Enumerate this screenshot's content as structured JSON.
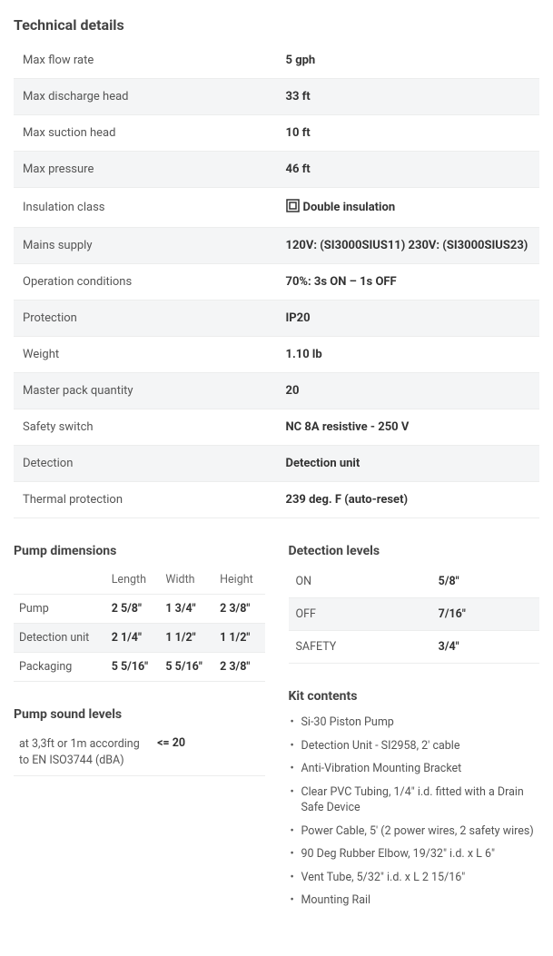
{
  "tech": {
    "title": "Technical details",
    "rows": [
      {
        "label": "Max flow rate",
        "value": "5 gph"
      },
      {
        "label": "Max discharge head",
        "value": "33 ft"
      },
      {
        "label": "Max suction head",
        "value": "10 ft"
      },
      {
        "label": "Max pressure",
        "value": "46 ft"
      },
      {
        "label": "Insulation class",
        "value": "Double insulation",
        "hasIcon": true
      },
      {
        "label": "Mains supply",
        "value": "120V: (SI3000SIUS11) 230V: (SI3000SIUS23)"
      },
      {
        "label": "Operation conditions",
        "value": "70%: 3s ON – 1s OFF"
      },
      {
        "label": "Protection",
        "value": "IP20"
      },
      {
        "label": "Weight",
        "value": "1.10 lb"
      },
      {
        "label": "Master pack quantity",
        "value": "20"
      },
      {
        "label": "Safety switch",
        "value": "NC 8A resistive - 250 V"
      },
      {
        "label": "Detection",
        "value": "Detection unit"
      },
      {
        "label": "Thermal protection",
        "value": "239 deg. F (auto-reset)"
      }
    ]
  },
  "dims": {
    "title": "Pump dimensions",
    "columns": [
      "",
      "Length",
      "Width",
      "Height"
    ],
    "rows": [
      {
        "label": "Pump",
        "length": "2 5/8\"",
        "width": "1 3/4\"",
        "height": "2 3/8\""
      },
      {
        "label": "Detection unit",
        "length": "2 1/4\"",
        "width": "1 1/2\"",
        "height": "1 1/2\"",
        "striped": true
      },
      {
        "label": "Packaging",
        "length": "5 5/16\"",
        "width": "5 5/16\"",
        "height": "2 3/8\""
      }
    ]
  },
  "levels": {
    "title": "Detection levels",
    "rows": [
      {
        "k": "ON",
        "v": "5/8\""
      },
      {
        "k": "OFF",
        "v": "7/16\"",
        "striped": true
      },
      {
        "k": "SAFETY",
        "v": "3/4\""
      }
    ]
  },
  "sound": {
    "title": "Pump sound levels",
    "label": "at 3,3ft or 1m according to EN ISO3744 (dBA)",
    "value": "<= 20"
  },
  "kit": {
    "title": "Kit contents",
    "items": [
      "Si-30 Piston Pump",
      "Detection Unit - SI2958, 2' cable",
      "Anti-Vibration Mounting Bracket",
      "Clear PVC Tubing, 1/4\" i.d. fitted with a Drain Safe Device",
      "Power Cable, 5' (2 power wires, 2 safety wires)",
      "90 Deg Rubber Elbow, 19/32\" i.d. x L 6\"",
      "Vent Tube, 5/32\" i.d. x L 2 15/16\"",
      "Mounting Rail"
    ]
  },
  "colors": {
    "text": "#555555",
    "strong": "#333333",
    "stripe": "#f4f5f6",
    "border": "#eceded"
  }
}
